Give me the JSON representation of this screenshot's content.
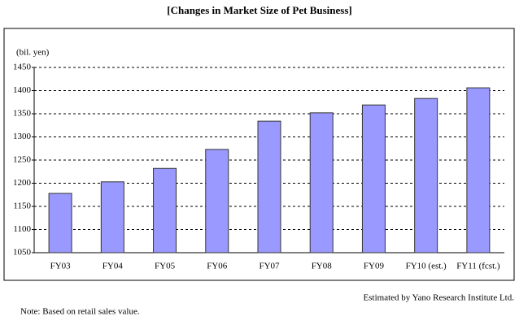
{
  "chart_data": {
    "type": "bar",
    "title": "[Changes in Market Size of Pet Business]",
    "y_label": "(bil. yen)",
    "categories": [
      "FY03",
      "FY04",
      "FY05",
      "FY06",
      "FY07",
      "FY08",
      "FY09",
      "FY10 (est.)",
      "FY11 (fcst.)"
    ],
    "values": [
      1178,
      1203,
      1232,
      1273,
      1334,
      1352,
      1369,
      1383,
      1406
    ],
    "color": "#9999ff",
    "ylim": [
      1050,
      1450
    ],
    "yticks": [
      1050,
      1100,
      1150,
      1200,
      1250,
      1300,
      1350,
      1400,
      1450
    ],
    "grid": true,
    "source": "Estimated by Yano Research Institute Ltd.",
    "note": "Note: Based on retail sales value."
  }
}
